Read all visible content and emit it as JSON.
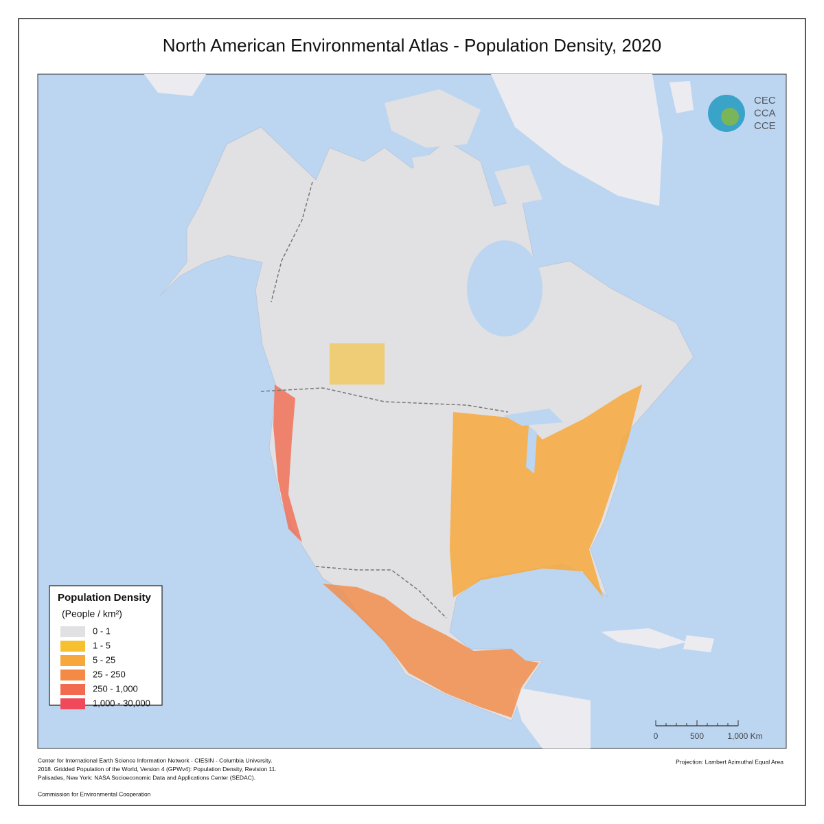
{
  "title": "North American Environmental Atlas - Population Density, 2020",
  "legend": {
    "title": "Population Density",
    "subtitle": "(People / km²)",
    "items": [
      {
        "label": "0 - 1",
        "color": "#e1e0e2"
      },
      {
        "label": "1 - 5",
        "color": "#f6c02f"
      },
      {
        "label": "5 - 25",
        "color": "#f7a83c"
      },
      {
        "label": "25 - 250",
        "color": "#f48a45"
      },
      {
        "label": "250 - 1,000",
        "color": "#f26a50"
      },
      {
        "label": "1,000 - 30,000",
        "color": "#f04a5a"
      }
    ]
  },
  "logo": {
    "lines": [
      "CEC",
      "CCA",
      "CCE"
    ]
  },
  "scale_bar": {
    "labels": [
      "0",
      "500",
      "1,000 Km"
    ]
  },
  "projection": "Projection: Lambert Azimuthal Equal Area",
  "credits": [
    "Center for International Earth Science Information Network - CIESIN - Columbia University.",
    "2018. Gridded Population of the World, Version 4 (GPWv4): Population Density, Revision 11.",
    "Palisades, New York: NASA Socioeconomic Data and Applications Center (SEDAC).",
    "Commission for Environmental Cooperation"
  ]
}
